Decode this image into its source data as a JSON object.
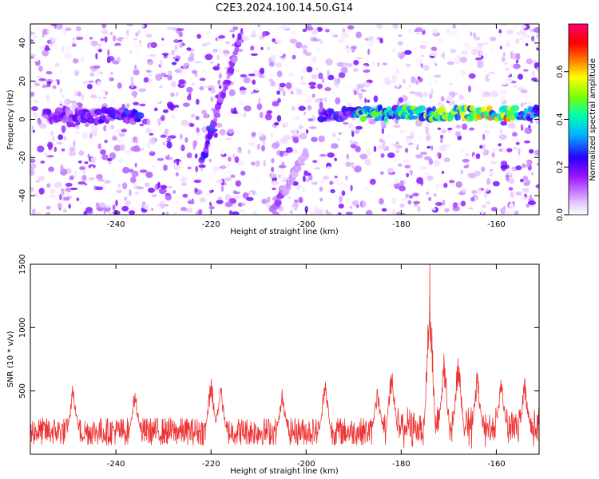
{
  "title": "C2E3.2024.100.14.50.G14",
  "chart_data": [
    {
      "type": "heatmap",
      "xlabel": "Height of straight line (km)",
      "ylabel": "Frequency (Hz)",
      "xlim": [
        -258,
        -151
      ],
      "ylim": [
        -50,
        50
      ],
      "xticks": [
        -240,
        -220,
        -200,
        -180,
        -160
      ],
      "yticks": [
        -40,
        -20,
        0,
        20,
        40
      ],
      "grid": false,
      "colorbar": {
        "label": "Normalized spectral amplitude",
        "range": [
          0,
          0.8
        ],
        "ticks": [
          0.0,
          0.2,
          0.4,
          0.6
        ]
      },
      "features": [
        {
          "kind": "horizontal-band",
          "x_start": -255,
          "x_end": -235,
          "frequency": 2,
          "peak_amplitude": 0.3
        },
        {
          "kind": "horizontal-band",
          "x_start": -197,
          "x_end": -151,
          "frequency": 3,
          "peak_amplitude": 0.75
        },
        {
          "kind": "diagonal-streak",
          "x_start": -222,
          "x_end": -214,
          "f_start": -23,
          "f_end": 42,
          "peak_amplitude": 0.3
        },
        {
          "kind": "diagonal-streak",
          "x_start": -207,
          "x_end": -200,
          "f_start": -48,
          "f_end": -18,
          "peak_amplitude": 0.15
        }
      ]
    },
    {
      "type": "line",
      "xlabel": "Height of straight line (km)",
      "ylabel": "SNR (10 * v/v)",
      "xlim": [
        -258,
        -151
      ],
      "ylim": [
        0,
        1500
      ],
      "xticks": [
        -240,
        -220,
        -200,
        -180,
        -160
      ],
      "yticks": [
        500,
        1000,
        1500
      ],
      "grid": false,
      "color": "#ee3333",
      "series_profile": {
        "baseline": 180,
        "noise_amplitude": 200,
        "peaks": [
          {
            "x": -249,
            "value": 600
          },
          {
            "x": -236,
            "value": 530
          },
          {
            "x": -220,
            "value": 660
          },
          {
            "x": -218,
            "value": 600
          },
          {
            "x": -205,
            "value": 530
          },
          {
            "x": -196,
            "value": 650
          },
          {
            "x": -185,
            "value": 560
          },
          {
            "x": -182,
            "value": 770
          },
          {
            "x": -174,
            "value": 1500
          },
          {
            "x": -171,
            "value": 870
          },
          {
            "x": -168,
            "value": 880
          },
          {
            "x": -164,
            "value": 690
          },
          {
            "x": -159,
            "value": 670
          },
          {
            "x": -154,
            "value": 640
          }
        ]
      }
    }
  ]
}
